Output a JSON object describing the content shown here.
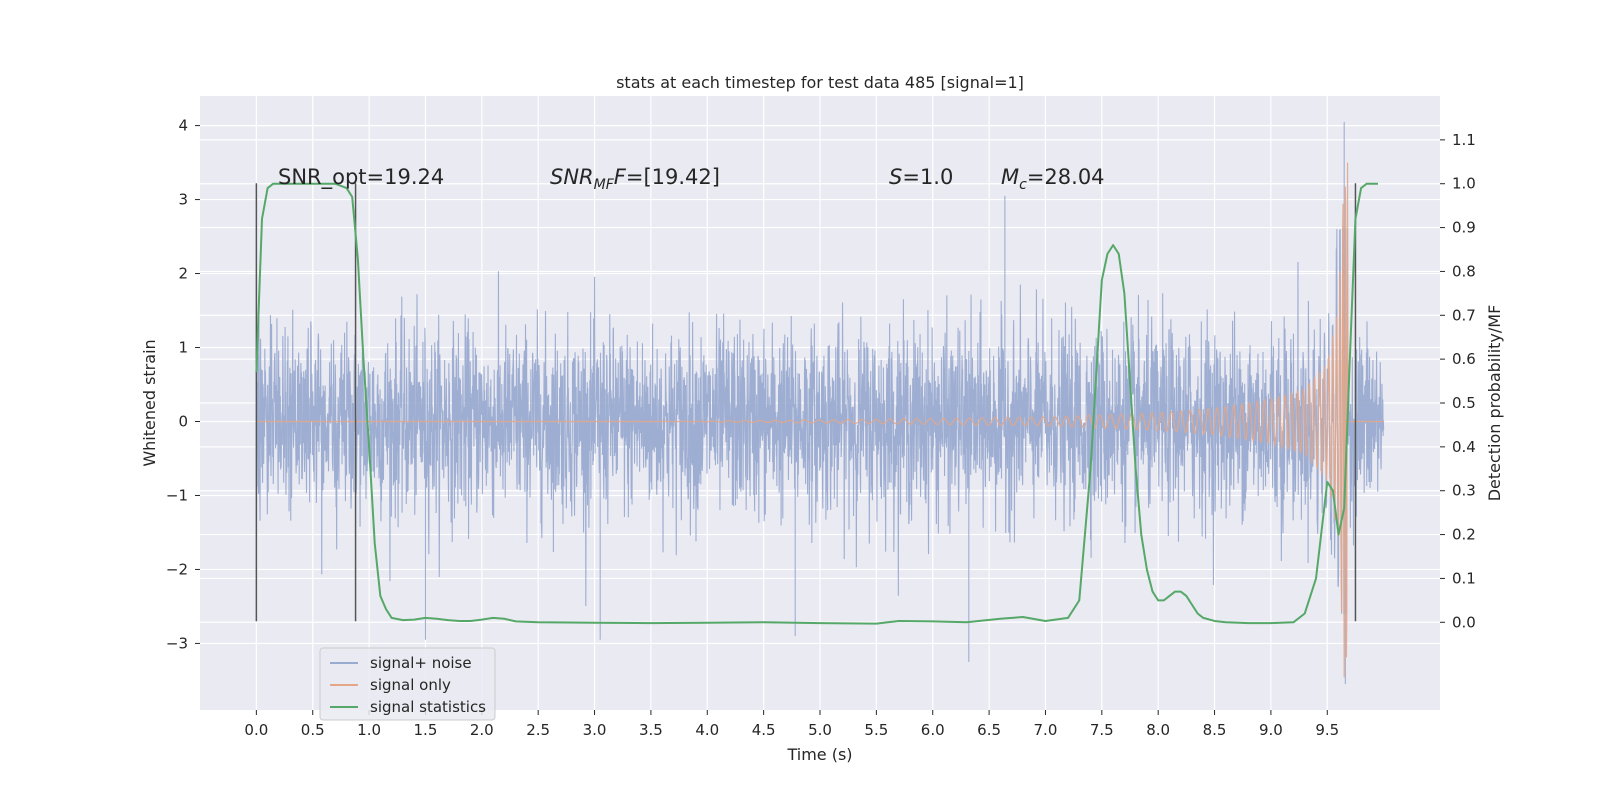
{
  "chart_data": {
    "type": "line",
    "title": "stats at each timestep for test data 485 [signal=1]",
    "xlabel": "Time (s)",
    "ylabel_left": "Whitened strain",
    "ylabel_right": "Detection probability/MF",
    "xlim": [
      -0.5,
      10.5
    ],
    "ylim_left": [
      -3.9,
      4.4
    ],
    "ylim_right": [
      -0.2,
      1.2
    ],
    "x_ticks": [
      "0.0",
      "0.5",
      "1.0",
      "1.5",
      "2.0",
      "2.5",
      "3.0",
      "3.5",
      "4.0",
      "4.5",
      "5.0",
      "5.5",
      "6.0",
      "6.5",
      "7.0",
      "7.5",
      "8.0",
      "8.5",
      "9.0",
      "9.5"
    ],
    "y_left_ticks": [
      "4",
      "3",
      "2",
      "1",
      "0",
      "−1",
      "−2",
      "−3"
    ],
    "y_right_ticks": [
      "1.1",
      "1.0",
      "0.9",
      "0.8",
      "0.7",
      "0.6",
      "0.5",
      "0.4",
      "0.3",
      "0.2",
      "0.1",
      "0.0"
    ],
    "grid": true,
    "legend_position": "lower-left",
    "annotations": {
      "snr_opt": "SNR_opt=19.24",
      "snr_mf_main": "SNR",
      "snr_mf_sub": "MF",
      "snr_mf_value": "=[19.42]",
      "s_main": "S",
      "s_value": "=1.0",
      "mc_main": "M",
      "mc_sub": "c",
      "mc_value": "=28.04"
    },
    "vertical_markers_x": [
      0.0,
      0.88,
      9.75
    ],
    "series": [
      {
        "name": "signal+ noise",
        "color": "#9aabd0",
        "axis": "left",
        "x_range": [
          0.0,
          10.0
        ],
        "noise_envelope": 1.4,
        "peak_extremes": [
          [
            6.64,
            3.05
          ],
          [
            9.65,
            4.05
          ],
          [
            9.66,
            -3.55
          ],
          [
            6.32,
            -3.25
          ],
          [
            1.5,
            -2.95
          ],
          [
            3.05,
            -2.95
          ],
          [
            4.78,
            -2.9
          ]
        ]
      },
      {
        "name": "signal only",
        "color": "#e3a688",
        "axis": "left",
        "description_values": {
          "amplitude_at_x": [
            [
              5.0,
              0.02
            ],
            [
              6.0,
              0.04
            ],
            [
              7.0,
              0.06
            ],
            [
              8.0,
              0.12
            ],
            [
              8.5,
              0.18
            ],
            [
              9.0,
              0.3
            ],
            [
              9.3,
              0.45
            ],
            [
              9.5,
              0.8
            ],
            [
              9.6,
              1.6
            ],
            [
              9.65,
              3.5
            ]
          ]
        }
      },
      {
        "name": "signal statistics",
        "color": "#55a868",
        "axis": "right",
        "x": [
          0.0,
          0.05,
          0.1,
          0.15,
          0.25,
          0.35,
          0.5,
          0.6,
          0.7,
          0.8,
          0.85,
          0.9,
          0.95,
          1.0,
          1.05,
          1.1,
          1.15,
          1.2,
          1.3,
          1.4,
          1.5,
          1.6,
          1.7,
          1.8,
          1.9,
          2.0,
          2.1,
          2.2,
          2.3,
          2.5,
          3.0,
          3.5,
          4.0,
          4.5,
          5.0,
          5.5,
          5.7,
          6.0,
          6.3,
          6.6,
          6.8,
          7.0,
          7.2,
          7.3,
          7.4,
          7.5,
          7.55,
          7.6,
          7.65,
          7.7,
          7.75,
          7.8,
          7.85,
          7.9,
          7.95,
          8.0,
          8.05,
          8.1,
          8.15,
          8.2,
          8.25,
          8.3,
          8.35,
          8.4,
          8.5,
          8.6,
          8.8,
          9.0,
          9.2,
          9.3,
          9.4,
          9.5,
          9.55,
          9.6,
          9.65,
          9.7,
          9.75,
          9.8,
          9.85,
          9.9,
          9.95
        ],
        "y": [
          0.57,
          0.92,
          0.99,
          1.0,
          1.0,
          1.0,
          1.0,
          1.0,
          1.0,
          0.99,
          0.97,
          0.83,
          0.6,
          0.4,
          0.18,
          0.06,
          0.03,
          0.01,
          0.005,
          0.006,
          0.01,
          0.008,
          0.005,
          0.003,
          0.003,
          0.006,
          0.01,
          0.008,
          0.002,
          0.0,
          -0.001,
          -0.002,
          -0.001,
          0.0,
          -0.002,
          -0.003,
          0.003,
          0.002,
          0.0,
          0.008,
          0.012,
          0.003,
          0.01,
          0.05,
          0.35,
          0.78,
          0.84,
          0.86,
          0.84,
          0.75,
          0.55,
          0.35,
          0.2,
          0.12,
          0.07,
          0.05,
          0.05,
          0.06,
          0.07,
          0.07,
          0.06,
          0.04,
          0.02,
          0.01,
          0.003,
          0.0,
          -0.002,
          -0.002,
          0.0,
          0.02,
          0.1,
          0.32,
          0.3,
          0.2,
          0.26,
          0.6,
          0.92,
          0.99,
          1.0,
          1.0,
          1.0
        ]
      }
    ]
  }
}
